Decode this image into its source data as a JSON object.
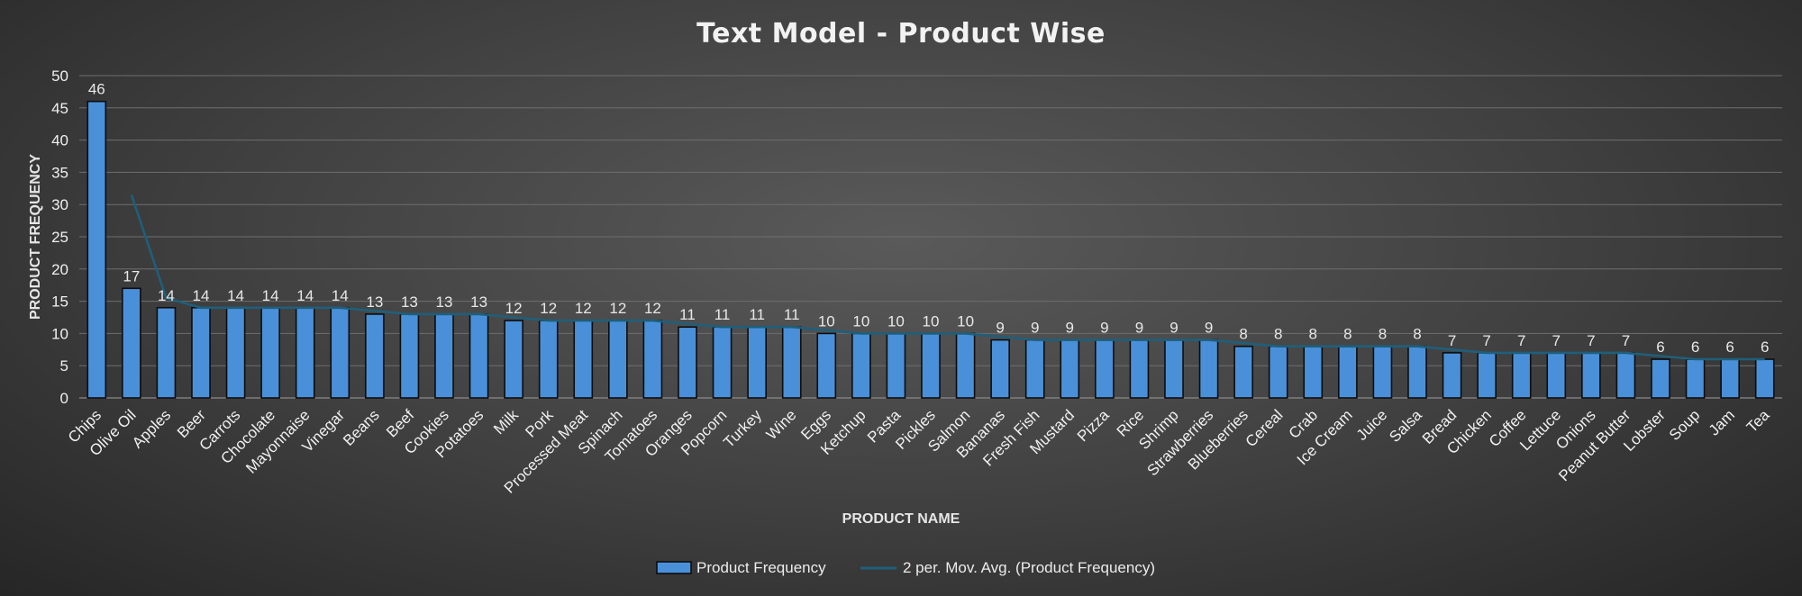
{
  "chart_data": {
    "type": "bar",
    "title": "Text Model - Product Wise",
    "xlabel": "PRODUCT NAME",
    "ylabel": "PRODUCT FREQUENCY",
    "ylim": [
      0,
      50
    ],
    "yticks": [
      0,
      5,
      10,
      15,
      20,
      25,
      30,
      35,
      40,
      45,
      50
    ],
    "grid": true,
    "legend_position": "bottom",
    "colors": {
      "bar": "#4a90d9",
      "bar_border": "#0d0d0d",
      "trendline": "#1f5f7a"
    },
    "categories": [
      "Chips",
      "Olive Oil",
      "Apples",
      "Beer",
      "Carrots",
      "Chocolate",
      "Mayonnaise",
      "Vinegar",
      "Beans",
      "Beef",
      "Cookies",
      "Potatoes",
      "Milk",
      "Pork",
      "Processed Meat",
      "Spinach",
      "Tomatoes",
      "Oranges",
      "Popcorn",
      "Turkey",
      "Wine",
      "Eggs",
      "Ketchup",
      "Pasta",
      "Pickles",
      "Salmon",
      "Bananas",
      "Fresh Fish",
      "Mustard",
      "Pizza",
      "Rice",
      "Shrimp",
      "Strawberries",
      "Blueberries",
      "Cereal",
      "Crab",
      "Ice Cream",
      "Juice",
      "Salsa",
      "Bread",
      "Chicken",
      "Coffee",
      "Lettuce",
      "Onions",
      "Peanut Butter",
      "Lobster",
      "Soup",
      "Jam",
      "Tea"
    ],
    "series": [
      {
        "name": "Product Frequency",
        "kind": "bar",
        "values": [
          46,
          17,
          14,
          14,
          14,
          14,
          14,
          14,
          13,
          13,
          13,
          13,
          12,
          12,
          12,
          12,
          12,
          11,
          11,
          11,
          11,
          10,
          10,
          10,
          10,
          10,
          9,
          9,
          9,
          9,
          9,
          9,
          9,
          8,
          8,
          8,
          8,
          8,
          8,
          7,
          7,
          7,
          7,
          7,
          7,
          6,
          6,
          6,
          6
        ]
      },
      {
        "name": "2 per. Mov. Avg. (Product Frequency)",
        "kind": "line",
        "window": 2
      }
    ]
  }
}
